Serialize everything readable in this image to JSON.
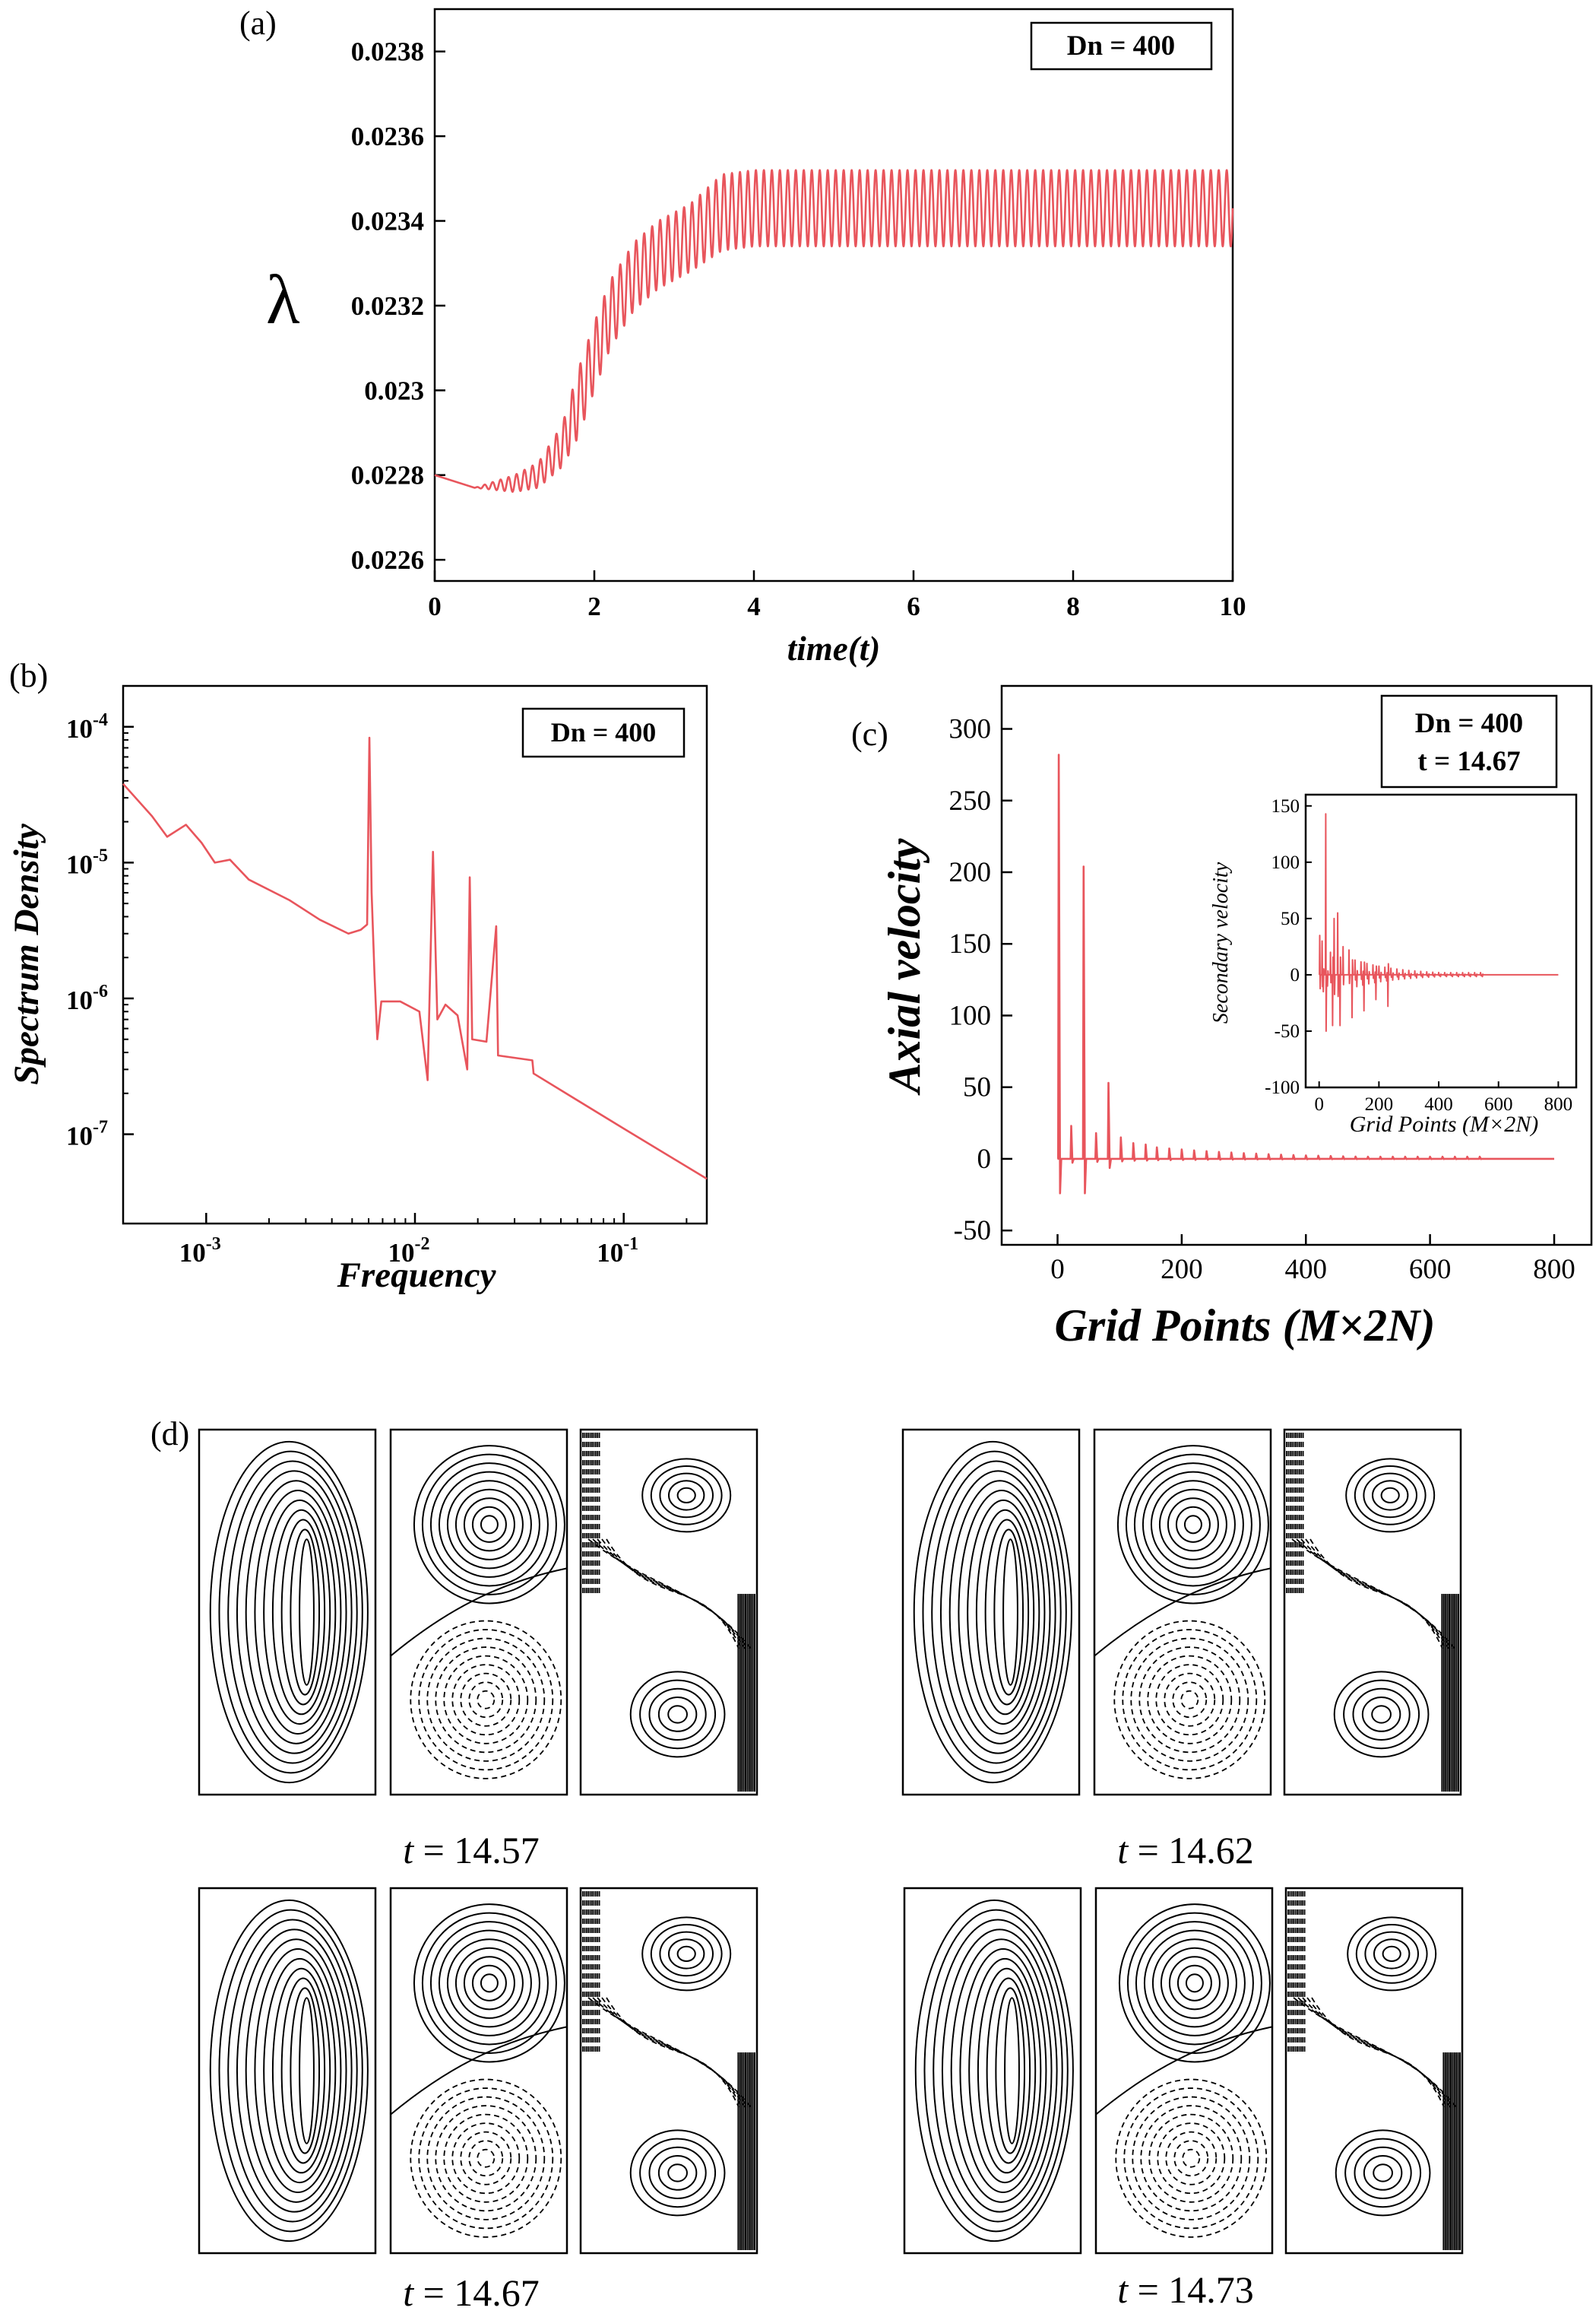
{
  "chart_data": [
    {
      "panel": "(a)",
      "type": "line",
      "xlabel": "time(t)",
      "ylabel": "λ",
      "legend": "Dn = 400",
      "xlim": [
        0,
        10
      ],
      "ylim": [
        0.02255,
        0.0239
      ],
      "x_ticks": [
        "0",
        "2",
        "4",
        "6",
        "8",
        "10"
      ],
      "y_ticks": [
        "0.0226",
        "0.0228",
        "0.023",
        "0.0232",
        "0.0234",
        "0.0236",
        "0.0238"
      ],
      "series": [
        {
          "name": "lambda",
          "x": [
            0,
            0.5,
            1.0,
            1.3,
            1.6,
            1.8,
            2.0,
            2.2,
            2.5,
            2.8,
            3.2,
            3.6,
            4,
            6,
            8,
            10
          ],
          "y_center": [
            0.0228,
            0.02277,
            0.02278,
            0.0228,
            0.02287,
            0.02297,
            0.02308,
            0.02318,
            0.02327,
            0.02332,
            0.02336,
            0.02342,
            0.02343,
            0.02343,
            0.02343,
            0.02343
          ],
          "amplitude": [
            0,
            0,
            2e-05,
            3e-05,
            5e-05,
            8e-05,
            8e-05,
            8e-05,
            8e-05,
            8e-05,
            8e-05,
            9e-05,
            9e-05,
            9e-05,
            9e-05,
            9e-05
          ],
          "oscillation_period": 0.1
        }
      ]
    },
    {
      "panel": "(b)",
      "type": "line",
      "scale": "log-log",
      "xlabel": "Frequency",
      "ylabel": "Spectrum Density",
      "legend": "Dn = 400",
      "xlim": [
        0.0004,
        0.25
      ],
      "ylim": [
        2.2e-08,
        0.0002
      ],
      "x_ticks": [
        {
          "value": 0.001,
          "mantissa": "10",
          "exp": "-3"
        },
        {
          "value": 0.01,
          "mantissa": "10",
          "exp": "-2"
        },
        {
          "value": 0.1,
          "mantissa": "10",
          "exp": "-1"
        }
      ],
      "y_ticks": [
        {
          "value": 1e-07,
          "mantissa": "10",
          "exp": "-7"
        },
        {
          "value": 1e-06,
          "mantissa": "10",
          "exp": "-6"
        },
        {
          "value": 1e-05,
          "mantissa": "10",
          "exp": "-5"
        },
        {
          "value": 0.0001,
          "mantissa": "10",
          "exp": "-4"
        }
      ],
      "series": [
        {
          "name": "spectrum",
          "points": [
            [
              0.0004,
              3.8e-05
            ],
            [
              0.00055,
              2.2e-05
            ],
            [
              0.00065,
              1.55e-05
            ],
            [
              0.0008,
              1.9e-05
            ],
            [
              0.00095,
              1.4e-05
            ],
            [
              0.0011,
              1e-05
            ],
            [
              0.0013,
              1.05e-05
            ],
            [
              0.0016,
              7.5e-06
            ],
            [
              0.0025,
              5.3e-06
            ],
            [
              0.0035,
              3.8e-06
            ],
            [
              0.0048,
              3e-06
            ],
            [
              0.0055,
              3.2e-06
            ],
            [
              0.0059,
              3.5e-06
            ],
            [
              0.00605,
              8.3e-05
            ],
            [
              0.0062,
              6e-06
            ],
            [
              0.0064,
              1.5e-06
            ],
            [
              0.0066,
              5e-07
            ],
            [
              0.0069,
              9.5e-07
            ],
            [
              0.0085,
              9.5e-07
            ],
            [
              0.0105,
              8e-07
            ],
            [
              0.0115,
              2.5e-07
            ],
            [
              0.0122,
              1.2e-05
            ],
            [
              0.0128,
              7e-07
            ],
            [
              0.014,
              9e-07
            ],
            [
              0.016,
              7.5e-07
            ],
            [
              0.0178,
              3e-07
            ],
            [
              0.0183,
              7.8e-06
            ],
            [
              0.0188,
              5e-07
            ],
            [
              0.022,
              4.8e-07
            ],
            [
              0.0245,
              3.4e-06
            ],
            [
              0.025,
              3.8e-07
            ],
            [
              0.0365,
              3.5e-07
            ],
            [
              0.037,
              2.8e-07
            ],
            [
              0.1,
              1.1e-07
            ],
            [
              0.25,
              4.7e-08
            ]
          ]
        }
      ]
    },
    {
      "panel": "(c)",
      "type": "line",
      "xlabel": "Grid Points (M×2N)",
      "ylabel": "Axial velocity",
      "legend": [
        "Dn = 400",
        "t = 14.67"
      ],
      "xlim": [
        -90,
        860
      ],
      "ylim": [
        -60,
        330
      ],
      "x_ticks": [
        "0",
        "200",
        "400",
        "600",
        "800"
      ],
      "y_ticks": [
        "-50",
        "0",
        "50",
        "100",
        "150",
        "200",
        "250",
        "300"
      ],
      "series": [
        {
          "name": "axial",
          "spikes": [
            [
              2,
              282
            ],
            [
              42,
              204
            ],
            [
              82,
              53
            ],
            [
              22,
              23
            ],
            [
              62,
              18
            ],
            [
              102,
              15
            ],
            [
              122,
              11
            ],
            [
              142,
              10
            ]
          ],
          "baseline": 0,
          "end": 800
        }
      ],
      "inset": {
        "type": "line",
        "xlabel": "Grid Points (M×2N)",
        "ylabel": "Secondary velocity",
        "xlim": [
          -45,
          860
        ],
        "ylim": [
          -100,
          160
        ],
        "x_ticks": [
          "0",
          "200",
          "400",
          "600",
          "800"
        ],
        "y_ticks": [
          "-100",
          "-50",
          "0",
          "50",
          "100",
          "150"
        ],
        "series": [
          {
            "name": "secondary",
            "spikes": [
              [
                2,
                35
              ],
              [
                10,
                30
              ],
              [
                22,
                143
              ],
              [
                38,
                20
              ],
              [
                50,
                50
              ],
              [
                62,
                55
              ],
              [
                80,
                25
              ],
              [
                100,
                22
              ]
            ],
            "troughs": [
              [
                14,
                -15
              ],
              [
                28,
                -10
              ],
              [
                45,
                -45
              ],
              [
                70,
                -45
              ],
              [
                110,
                -38
              ],
              [
                150,
                -32
              ],
              [
                190,
                -22
              ],
              [
                230,
                -28
              ]
            ],
            "end": 800
          }
        ]
      }
    }
  ],
  "panel_labels": {
    "a": "(a)",
    "b": "(b)",
    "c": "(c)",
    "d": "(d)"
  },
  "contour_groups": [
    {
      "time_label": "t = 14.57",
      "t_var": "t",
      "t_value": "= 14.57"
    },
    {
      "time_label": "t = 14.62",
      "t_var": "t",
      "t_value": "= 14.62"
    },
    {
      "time_label": "t = 14.67",
      "t_var": "t",
      "t_value": "= 14.67"
    },
    {
      "time_label": "t = 14.73",
      "t_var": "t",
      "t_value": "= 14.73"
    }
  ],
  "colors": {
    "series": "#e8555c",
    "axis": "#000000",
    "background": "#ffffff"
  }
}
